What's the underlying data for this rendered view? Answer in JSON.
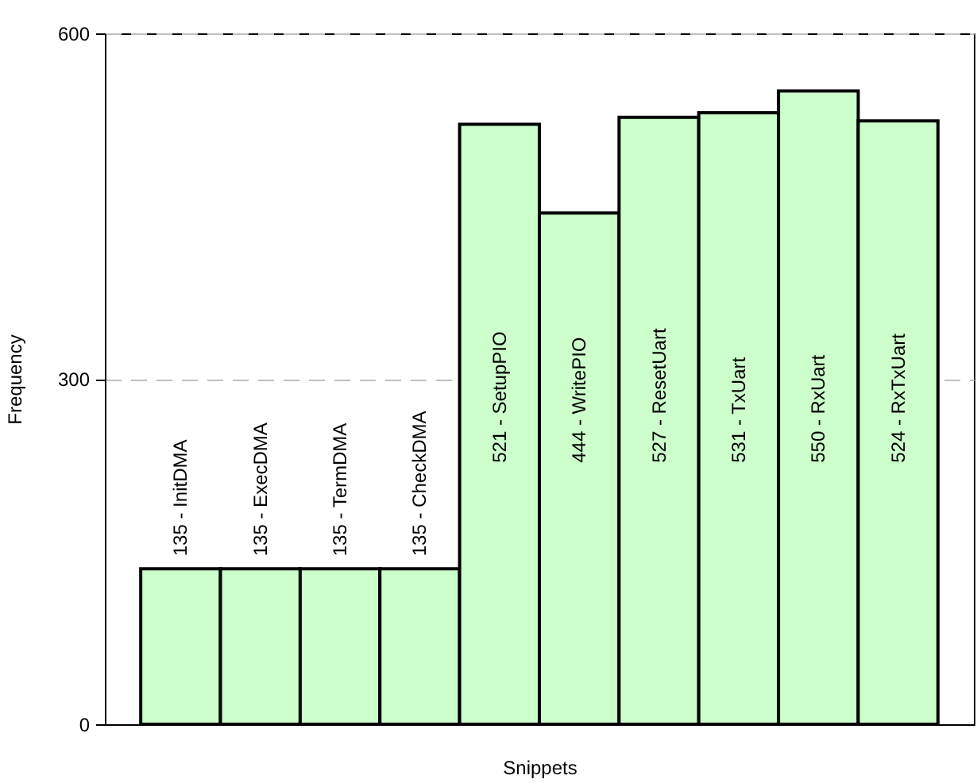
{
  "chart_data": {
    "type": "bar",
    "xlabel": "Snippets",
    "ylabel": "Frequency",
    "categories": [
      null,
      null,
      null,
      null,
      null,
      null,
      null,
      null,
      null,
      null
    ],
    "values": [
      135,
      135,
      135,
      135,
      521,
      444,
      527,
      531,
      550,
      524
    ],
    "value_labels": [
      "135 - InitDMA",
      "135 - ExecDMA",
      "135 - TermDMA",
      "135 - CheckDMA",
      "521 - SetupPIO",
      "444 - WritePIO",
      "527 - ResetUart",
      "531 - TxUart",
      "550 - RxUart",
      "524 - RxTxUart"
    ],
    "color": "#ccffcc",
    "ylim": [
      0,
      600
    ],
    "yticks": [
      0,
      300,
      600
    ],
    "grid": "y",
    "tick_labels": "y"
  }
}
